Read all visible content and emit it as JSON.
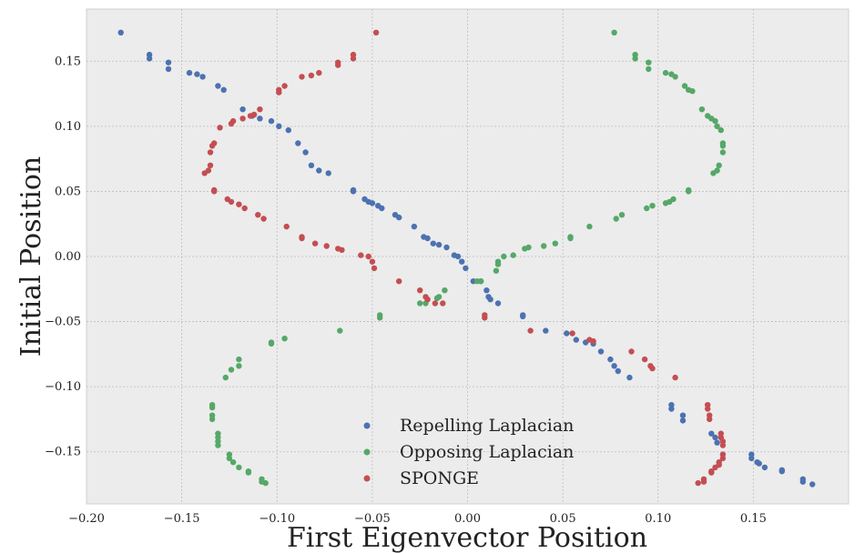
{
  "chart_data": {
    "type": "scatter",
    "title": "",
    "xlabel": "First Eigenvector Position",
    "ylabel": "Initial Position",
    "xlim": [
      -0.2,
      0.2
    ],
    "ylim": [
      -0.19,
      0.19
    ],
    "xticks": [
      -0.2,
      -0.15,
      -0.1,
      -0.05,
      0.0,
      0.05,
      0.1,
      0.15
    ],
    "xtick_labels": [
      "−0.20",
      "−0.15",
      "−0.10",
      "−0.05",
      "0.00",
      "0.05",
      "0.10",
      "0.15"
    ],
    "yticks": [
      0.15,
      0.1,
      0.05,
      0.0,
      -0.05,
      -0.1,
      -0.15
    ],
    "ytick_labels": [
      "0.15",
      "0.10",
      "0.05",
      "0.00",
      "−0.05",
      "−0.10",
      "−0.15"
    ],
    "grid": true,
    "legend_position": "bottom-center",
    "background": "#ececec",
    "series": [
      {
        "name": "Repelling Laplacian",
        "color": "#4c72b0",
        "points": [
          [
            -0.182,
            0.172
          ],
          [
            -0.167,
            0.155
          ],
          [
            -0.167,
            0.152
          ],
          [
            -0.157,
            0.149
          ],
          [
            -0.157,
            0.144
          ],
          [
            -0.146,
            0.141
          ],
          [
            -0.142,
            0.14
          ],
          [
            -0.139,
            0.138
          ],
          [
            -0.131,
            0.131
          ],
          [
            -0.128,
            0.128
          ],
          [
            -0.118,
            0.113
          ],
          [
            -0.113,
            0.108
          ],
          [
            -0.109,
            0.106
          ],
          [
            -0.103,
            0.104
          ],
          [
            -0.099,
            0.1
          ],
          [
            -0.094,
            0.097
          ],
          [
            -0.089,
            0.087
          ],
          [
            -0.085,
            0.08
          ],
          [
            -0.082,
            0.07
          ],
          [
            -0.078,
            0.066
          ],
          [
            -0.073,
            0.064
          ],
          [
            -0.06,
            0.051
          ],
          [
            -0.06,
            0.05
          ],
          [
            -0.054,
            0.044
          ],
          [
            -0.052,
            0.042
          ],
          [
            -0.05,
            0.041
          ],
          [
            -0.047,
            0.039
          ],
          [
            -0.045,
            0.037
          ],
          [
            -0.038,
            0.032
          ],
          [
            -0.036,
            0.03
          ],
          [
            -0.028,
            0.023
          ],
          [
            -0.023,
            0.015
          ],
          [
            -0.021,
            0.014
          ],
          [
            -0.018,
            0.01
          ],
          [
            -0.015,
            0.009
          ],
          [
            -0.011,
            0.007
          ],
          [
            -0.007,
            0.001
          ],
          [
            -0.005,
            -0.0
          ],
          [
            -0.003,
            -0.004
          ],
          [
            -0.001,
            -0.009
          ],
          [
            0.003,
            -0.019
          ],
          [
            0.007,
            -0.019
          ],
          [
            0.01,
            -0.026
          ],
          [
            0.011,
            -0.031
          ],
          [
            0.012,
            -0.033
          ],
          [
            0.016,
            -0.036
          ],
          [
            0.029,
            -0.045
          ],
          [
            0.029,
            -0.046
          ],
          [
            0.041,
            -0.057
          ],
          [
            0.052,
            -0.059
          ],
          [
            0.057,
            -0.064
          ],
          [
            0.062,
            -0.066
          ],
          [
            0.066,
            -0.067
          ],
          [
            0.07,
            -0.073
          ],
          [
            0.075,
            -0.079
          ],
          [
            0.077,
            -0.084
          ],
          [
            0.079,
            -0.088
          ],
          [
            0.085,
            -0.093
          ],
          [
            0.107,
            -0.114
          ],
          [
            0.107,
            -0.117
          ],
          [
            0.113,
            -0.122
          ],
          [
            0.113,
            -0.126
          ],
          [
            0.128,
            -0.136
          ],
          [
            0.13,
            -0.139
          ],
          [
            0.131,
            -0.143
          ],
          [
            0.149,
            -0.152
          ],
          [
            0.149,
            -0.155
          ],
          [
            0.152,
            -0.158
          ],
          [
            0.153,
            -0.159
          ],
          [
            0.156,
            -0.162
          ],
          [
            0.165,
            -0.164
          ],
          [
            0.165,
            -0.165
          ],
          [
            0.176,
            -0.171
          ],
          [
            0.176,
            -0.173
          ],
          [
            0.181,
            -0.175
          ]
        ]
      },
      {
        "name": "Opposing Laplacian",
        "color": "#55a868",
        "points": [
          [
            0.077,
            0.172
          ],
          [
            0.088,
            0.155
          ],
          [
            0.088,
            0.152
          ],
          [
            0.095,
            0.149
          ],
          [
            0.095,
            0.144
          ],
          [
            0.104,
            0.141
          ],
          [
            0.107,
            0.14
          ],
          [
            0.109,
            0.138
          ],
          [
            0.114,
            0.131
          ],
          [
            0.116,
            0.128
          ],
          [
            0.118,
            0.127
          ],
          [
            0.123,
            0.113
          ],
          [
            0.126,
            0.108
          ],
          [
            0.128,
            0.106
          ],
          [
            0.13,
            0.104
          ],
          [
            0.131,
            0.1
          ],
          [
            0.133,
            0.097
          ],
          [
            0.134,
            0.087
          ],
          [
            0.134,
            0.085
          ],
          [
            0.134,
            0.08
          ],
          [
            0.132,
            0.07
          ],
          [
            0.131,
            0.066
          ],
          [
            0.129,
            0.064
          ],
          [
            0.116,
            0.051
          ],
          [
            0.116,
            0.05
          ],
          [
            0.108,
            0.044
          ],
          [
            0.106,
            0.042
          ],
          [
            0.104,
            0.041
          ],
          [
            0.097,
            0.039
          ],
          [
            0.094,
            0.037
          ],
          [
            0.081,
            0.032
          ],
          [
            0.078,
            0.029
          ],
          [
            0.064,
            0.023
          ],
          [
            0.054,
            0.015
          ],
          [
            0.054,
            0.014
          ],
          [
            0.046,
            0.01
          ],
          [
            0.04,
            0.008
          ],
          [
            0.032,
            0.007
          ],
          [
            0.03,
            0.006
          ],
          [
            0.024,
            0.001
          ],
          [
            0.019,
            -0.0
          ],
          [
            0.016,
            -0.004
          ],
          [
            0.016,
            -0.006
          ],
          [
            0.015,
            -0.011
          ],
          [
            0.007,
            -0.019
          ],
          [
            0.005,
            -0.019
          ],
          [
            -0.012,
            -0.026
          ],
          [
            -0.015,
            -0.031
          ],
          [
            -0.016,
            -0.032
          ],
          [
            -0.022,
            -0.036
          ],
          [
            -0.025,
            -0.036
          ],
          [
            -0.046,
            -0.045
          ],
          [
            -0.046,
            -0.047
          ],
          [
            -0.067,
            -0.057
          ],
          [
            -0.096,
            -0.063
          ],
          [
            -0.103,
            -0.066
          ],
          [
            -0.103,
            -0.067
          ],
          [
            -0.12,
            -0.079
          ],
          [
            -0.12,
            -0.084
          ],
          [
            -0.124,
            -0.087
          ],
          [
            -0.127,
            -0.093
          ],
          [
            -0.134,
            -0.114
          ],
          [
            -0.134,
            -0.116
          ],
          [
            -0.134,
            -0.122
          ],
          [
            -0.134,
            -0.125
          ],
          [
            -0.131,
            -0.136
          ],
          [
            -0.131,
            -0.139
          ],
          [
            -0.131,
            -0.142
          ],
          [
            -0.131,
            -0.145
          ],
          [
            -0.125,
            -0.152
          ],
          [
            -0.125,
            -0.155
          ],
          [
            -0.123,
            -0.158
          ],
          [
            -0.12,
            -0.162
          ],
          [
            -0.115,
            -0.165
          ],
          [
            -0.115,
            -0.166
          ],
          [
            -0.108,
            -0.171
          ],
          [
            -0.108,
            -0.173
          ],
          [
            -0.106,
            -0.174
          ]
        ]
      },
      {
        "name": "SPONGE",
        "color": "#c44e52",
        "points": [
          [
            -0.048,
            0.172
          ],
          [
            -0.06,
            0.155
          ],
          [
            -0.06,
            0.152
          ],
          [
            -0.068,
            0.149
          ],
          [
            -0.068,
            0.147
          ],
          [
            -0.078,
            0.141
          ],
          [
            -0.082,
            0.139
          ],
          [
            -0.087,
            0.138
          ],
          [
            -0.096,
            0.131
          ],
          [
            -0.099,
            0.128
          ],
          [
            -0.099,
            0.126
          ],
          [
            -0.109,
            0.113
          ],
          [
            -0.112,
            0.109
          ],
          [
            -0.114,
            0.108
          ],
          [
            -0.118,
            0.106
          ],
          [
            -0.123,
            0.104
          ],
          [
            -0.124,
            0.102
          ],
          [
            -0.13,
            0.099
          ],
          [
            -0.133,
            0.087
          ],
          [
            -0.134,
            0.085
          ],
          [
            -0.135,
            0.08
          ],
          [
            -0.135,
            0.07
          ],
          [
            -0.136,
            0.066
          ],
          [
            -0.138,
            0.064
          ],
          [
            -0.133,
            0.051
          ],
          [
            -0.133,
            0.05
          ],
          [
            -0.126,
            0.044
          ],
          [
            -0.124,
            0.042
          ],
          [
            -0.12,
            0.04
          ],
          [
            -0.117,
            0.037
          ],
          [
            -0.11,
            0.032
          ],
          [
            -0.107,
            0.029
          ],
          [
            -0.095,
            0.023
          ],
          [
            -0.087,
            0.015
          ],
          [
            -0.087,
            0.014
          ],
          [
            -0.08,
            0.01
          ],
          [
            -0.074,
            0.008
          ],
          [
            -0.068,
            0.006
          ],
          [
            -0.066,
            0.005
          ],
          [
            -0.056,
            0.001
          ],
          [
            -0.052,
            -0.0
          ],
          [
            -0.05,
            -0.004
          ],
          [
            -0.049,
            -0.009
          ],
          [
            -0.036,
            -0.019
          ],
          [
            -0.025,
            -0.026
          ],
          [
            -0.022,
            -0.031
          ],
          [
            -0.021,
            -0.033
          ],
          [
            -0.017,
            -0.036
          ],
          [
            -0.013,
            -0.036
          ],
          [
            0.009,
            -0.045
          ],
          [
            0.009,
            -0.047
          ],
          [
            0.033,
            -0.057
          ],
          [
            0.055,
            -0.059
          ],
          [
            0.064,
            -0.064
          ],
          [
            0.066,
            -0.065
          ],
          [
            0.086,
            -0.073
          ],
          [
            0.093,
            -0.079
          ],
          [
            0.096,
            -0.084
          ],
          [
            0.097,
            -0.086
          ],
          [
            0.109,
            -0.093
          ],
          [
            0.126,
            -0.114
          ],
          [
            0.126,
            -0.117
          ],
          [
            0.127,
            -0.122
          ],
          [
            0.127,
            -0.125
          ],
          [
            0.133,
            -0.136
          ],
          [
            0.133,
            -0.139
          ],
          [
            0.134,
            -0.142
          ],
          [
            0.134,
            -0.145
          ],
          [
            0.134,
            -0.152
          ],
          [
            0.134,
            -0.155
          ],
          [
            0.132,
            -0.158
          ],
          [
            0.132,
            -0.16
          ],
          [
            0.13,
            -0.162
          ],
          [
            0.128,
            -0.165
          ],
          [
            0.128,
            -0.166
          ],
          [
            0.124,
            -0.171
          ],
          [
            0.124,
            -0.173
          ],
          [
            0.121,
            -0.174
          ]
        ]
      }
    ]
  }
}
